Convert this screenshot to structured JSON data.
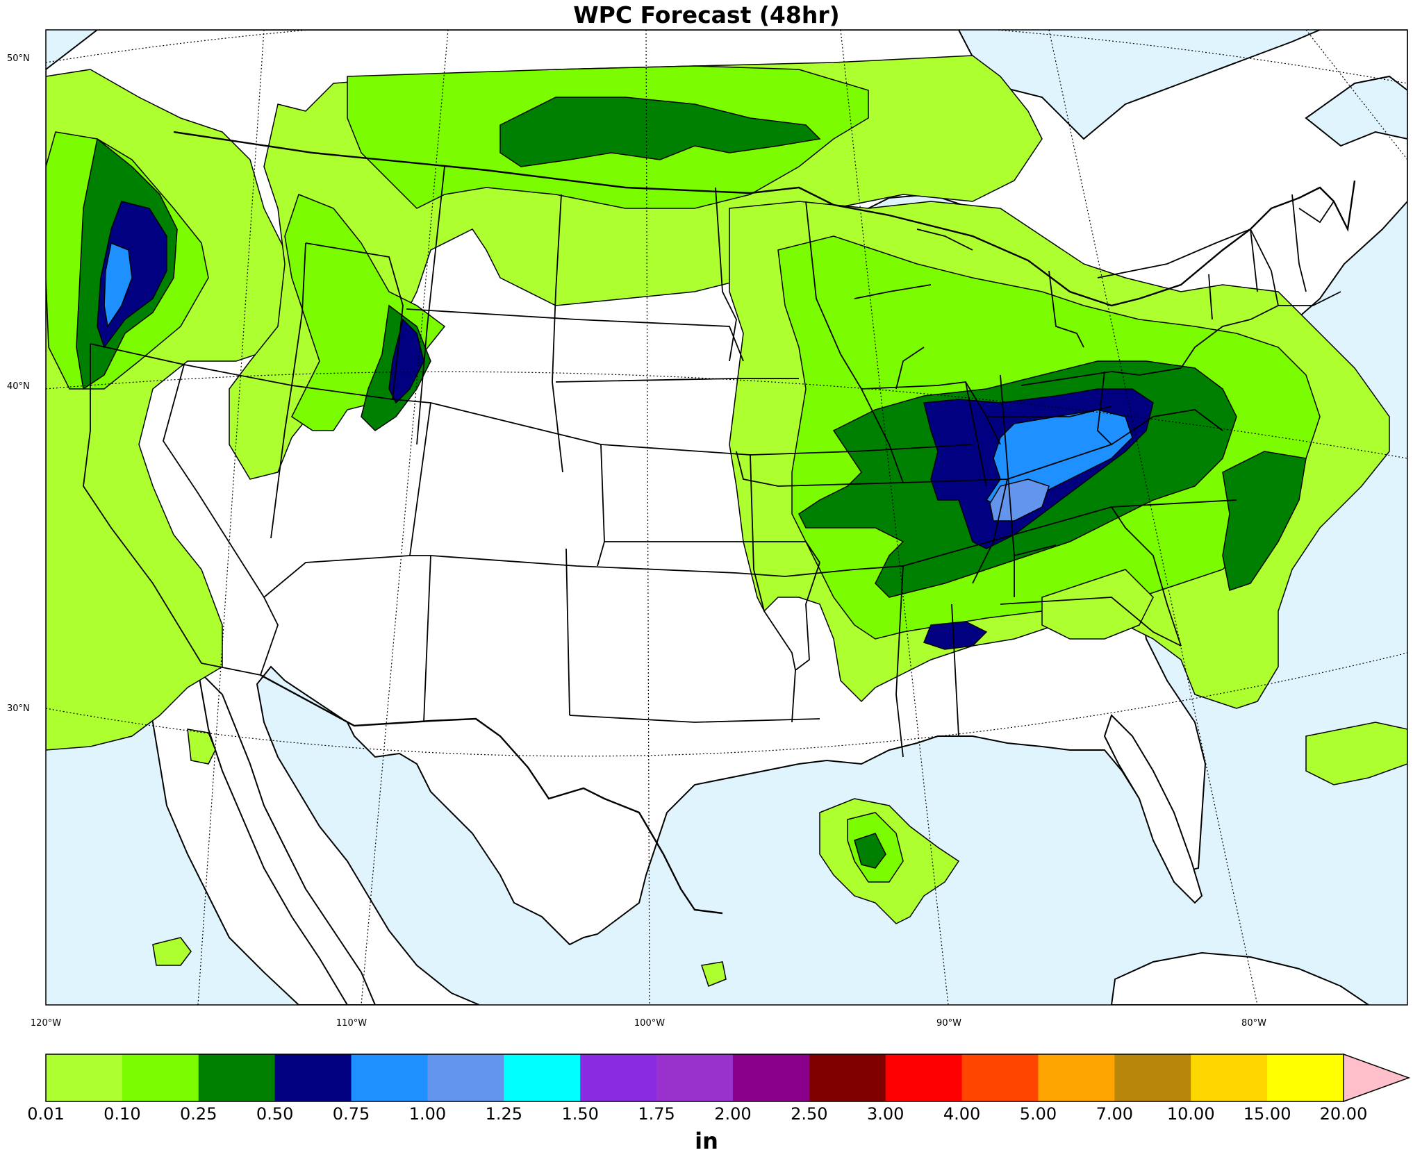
{
  "title": "WPC Forecast (48hr)",
  "lat_labels": [
    {
      "text": "50°N",
      "lat": 50
    },
    {
      "text": "40°N",
      "lat": 40
    },
    {
      "text": "30°N",
      "lat": 30
    }
  ],
  "lon_labels": [
    {
      "text": "120°W",
      "lon": -120
    },
    {
      "text": "110°W",
      "lon": -110
    },
    {
      "text": "100°W",
      "lon": -100
    },
    {
      "text": "90°W",
      "lon": -90
    },
    {
      "text": "80°W",
      "lon": -80
    }
  ],
  "colorbar": {
    "unit": "in",
    "levels": [
      "0.01",
      "0.10",
      "0.25",
      "0.50",
      "0.75",
      "1.00",
      "1.25",
      "1.50",
      "1.75",
      "2.00",
      "2.50",
      "3.00",
      "4.00",
      "5.00",
      "7.00",
      "10.00",
      "15.00",
      "20.00"
    ],
    "colors": [
      "#adff2f",
      "#7cfc00",
      "#008000",
      "#000080",
      "#1e90ff",
      "#6495ed",
      "#00ffff",
      "#8a2be2",
      "#9932cc",
      "#8b008b",
      "#800000",
      "#ff0000",
      "#ff4500",
      "#ffa500",
      "#b8860b",
      "#ffd700",
      "#ffff00"
    ],
    "extend_color": "#ffc0cb"
  },
  "colors": {
    "ocean": "#dff4fd",
    "land": "#ffffff",
    "borders": "#000000"
  }
}
